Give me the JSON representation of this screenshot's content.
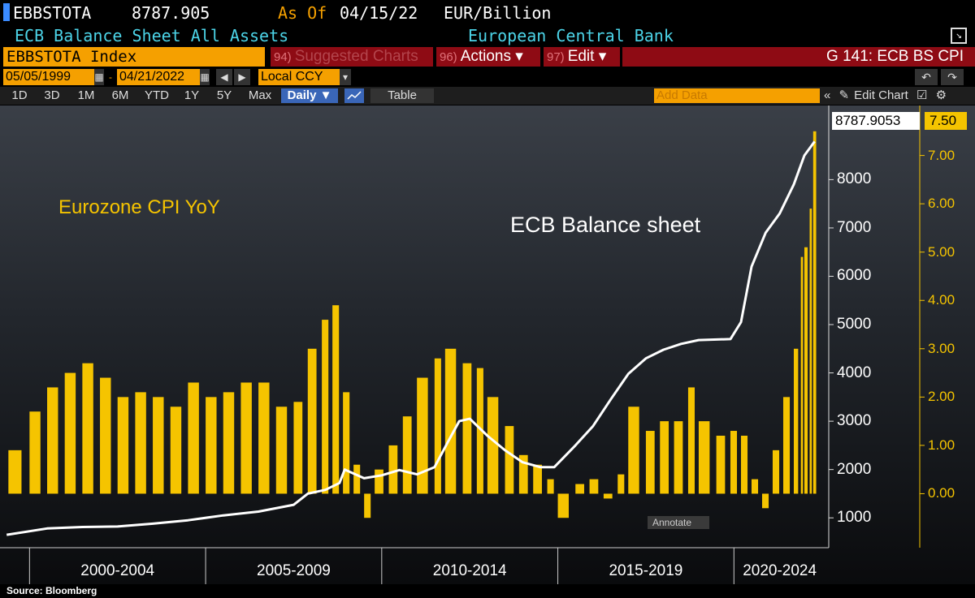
{
  "header": {
    "ticker": "EBBSTOTA",
    "last_value": "8787.905",
    "as_of_label": "As Of",
    "as_of_date": "04/15/22",
    "units": "EUR/Billion",
    "description": "ECB Balance Sheet All Assets",
    "source_name": "European Central Bank"
  },
  "toolbar": {
    "security": "EBBSTOTA Index",
    "suggested_num": "94)",
    "suggested_label": "Suggested Charts",
    "actions_num": "96)",
    "actions_label": "Actions ▾",
    "edit_num": "97)",
    "edit_label": "Edit ▾",
    "page_code": "G 141: ECB BS CPI"
  },
  "date_range": {
    "start": "05/05/1999",
    "end": "04/21/2022",
    "currency": "Local CCY"
  },
  "periods": [
    "1D",
    "3D",
    "1M",
    "6M",
    "YTD",
    "1Y",
    "5Y",
    "Max"
  ],
  "frequency": "Daily ▼",
  "table_label": "Table",
  "add_data_placeholder": "Add Data",
  "edit_chart_label": "Edit Chart",
  "annotate_label": "Annotate",
  "source_note": "Source: Bloomberg",
  "colors": {
    "balance_sheet": "#ffffff",
    "cpi": "#f5c400",
    "accent": "#f5a000",
    "menu": "#8e0b14"
  },
  "chart_data": {
    "type": "line",
    "annotations": [
      "Eurozone CPI YoY",
      "ECB Balance sheet"
    ],
    "x_ticks": [
      "2000-2004",
      "2005-2009",
      "2010-2014",
      "2015-2019",
      "2020-2024"
    ],
    "y_left": {
      "ticks": [
        1000,
        2000,
        3000,
        4000,
        5000,
        6000,
        7000,
        8000
      ],
      "range": [
        500,
        9400
      ]
    },
    "y_right": {
      "ticks": [
        "0.00",
        "1.00",
        "2.00",
        "3.00",
        "4.00",
        "5.00",
        "6.00",
        "7.00"
      ],
      "range": [
        -1.0,
        7.9
      ]
    },
    "last_value_left": "8787.9053",
    "last_value_right": "7.50",
    "series": [
      {
        "name": "ECB Balance sheet",
        "kind": "line",
        "axis": "left",
        "x": [
          1999.35,
          2000.5,
          2001.5,
          2002.5,
          2003.5,
          2004.5,
          2005.5,
          2006.5,
          2007.5,
          2007.9,
          2008.4,
          2008.8,
          2008.95,
          2009.5,
          2010.0,
          2010.5,
          2011.0,
          2011.5,
          2011.9,
          2012.2,
          2012.5,
          2013.0,
          2013.5,
          2014.0,
          2014.5,
          2014.9,
          2015.5,
          2016.0,
          2016.5,
          2017.0,
          2017.5,
          2018.0,
          2018.5,
          2019.0,
          2019.9,
          2020.2,
          2020.5,
          2020.9,
          2021.3,
          2021.7,
          2022.0,
          2022.29
        ],
        "y": [
          650,
          780,
          810,
          820,
          880,
          950,
          1050,
          1130,
          1270,
          1500,
          1580,
          1720,
          2000,
          1820,
          1880,
          1990,
          1900,
          2050,
          2600,
          3000,
          3050,
          2700,
          2400,
          2150,
          2050,
          2050,
          2500,
          2900,
          3450,
          3980,
          4300,
          4480,
          4600,
          4680,
          4700,
          5050,
          6200,
          6900,
          7300,
          7900,
          8500,
          8788
        ]
      },
      {
        "name": "Eurozone CPI YoY",
        "kind": "bar",
        "axis": "right",
        "x": [
          1999.4,
          2000.0,
          2000.5,
          2001.0,
          2001.5,
          2002.0,
          2002.5,
          2003.0,
          2003.5,
          2004.0,
          2004.5,
          2005.0,
          2005.5,
          2006.0,
          2006.5,
          2007.0,
          2007.5,
          2007.9,
          2008.3,
          2008.6,
          2008.9,
          2009.2,
          2009.5,
          2009.8,
          2010.2,
          2010.6,
          2011.0,
          2011.5,
          2011.8,
          2012.3,
          2012.7,
          2013.0,
          2013.5,
          2013.9,
          2014.3,
          2014.7,
          2015.0,
          2015.5,
          2015.9,
          2016.3,
          2016.7,
          2017.0,
          2017.5,
          2017.9,
          2018.3,
          2018.7,
          2019.0,
          2019.5,
          2019.9,
          2020.2,
          2020.5,
          2020.8,
          2021.1,
          2021.4,
          2021.7,
          2021.9,
          2022.0,
          2022.15,
          2022.25
        ],
        "y": [
          0.9,
          1.7,
          2.2,
          2.5,
          2.7,
          2.4,
          2.0,
          2.1,
          2.0,
          1.8,
          2.3,
          2.0,
          2.1,
          2.3,
          2.3,
          1.8,
          1.9,
          3.0,
          3.6,
          3.9,
          2.1,
          0.6,
          -0.5,
          0.5,
          1.0,
          1.6,
          2.4,
          2.8,
          3.0,
          2.7,
          2.6,
          2.0,
          1.4,
          0.8,
          0.6,
          0.3,
          -0.5,
          0.2,
          0.3,
          -0.1,
          0.4,
          1.8,
          1.3,
          1.5,
          1.5,
          2.2,
          1.5,
          1.2,
          1.3,
          1.2,
          0.3,
          -0.3,
          0.9,
          2.0,
          3.0,
          4.9,
          5.1,
          5.9,
          7.5
        ]
      }
    ]
  }
}
